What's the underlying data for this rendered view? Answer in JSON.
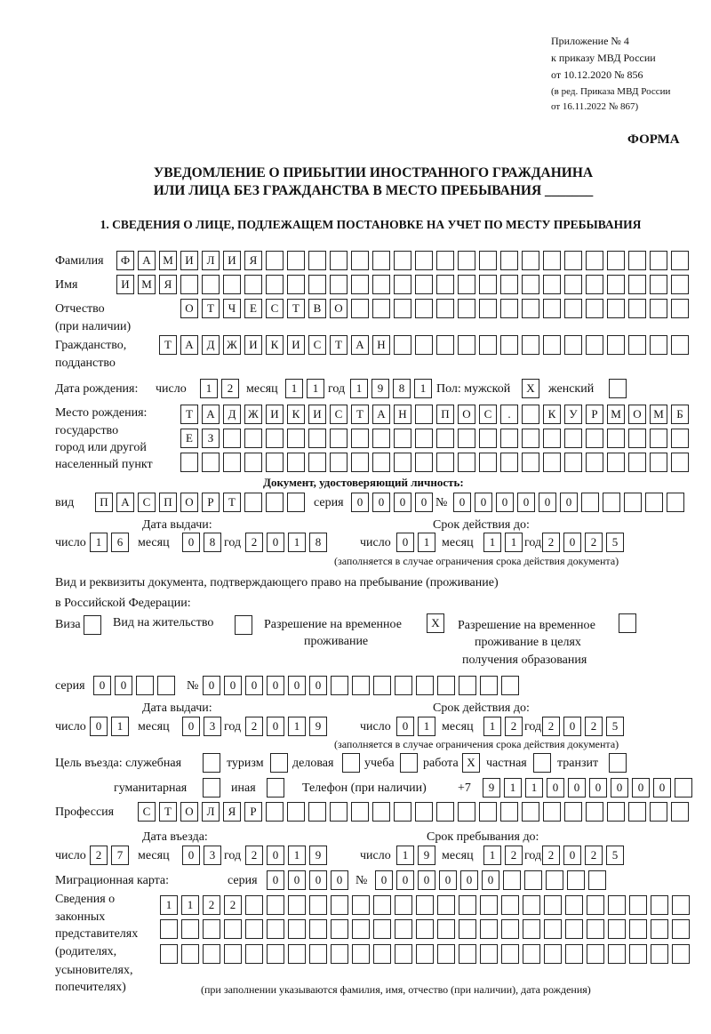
{
  "header": {
    "line1": "Приложение № 4",
    "line2": "к приказу МВД России",
    "line3": "от 10.12.2020 № 856",
    "line4": "(в ред. Приказа МВД России",
    "line5": "от 16.11.2022 № 867)",
    "form_label": "ФОРМА"
  },
  "title": {
    "line1": "УВЕДОМЛЕНИЕ О ПРИБЫТИИ ИНОСТРАННОГО ГРАЖДАНИНА",
    "line2": "ИЛИ ЛИЦА БЕЗ ГРАЖДАНСТВА В МЕСТО ПРЕБЫВАНИЯ _______"
  },
  "section1": {
    "heading": "1. СВЕДЕНИЯ О ЛИЦЕ, ПОДЛЕЖАЩЕМ ПОСТАНОВКЕ НА УЧЕТ ПО МЕСТУ ПРЕБЫВАНИЯ",
    "surname": {
      "label": "Фамилия",
      "value": "ФАМИЛИЯ"
    },
    "name": {
      "label": "Имя",
      "value": "ИМЯ"
    },
    "patronymic": {
      "label": "Отчество",
      "label2": "(при наличии)",
      "value": "ОТЧЕСТВО"
    },
    "citizenship": {
      "label": "Гражданство,",
      "label2": "подданство",
      "value": "ТАДЖИКИСТАН"
    },
    "birth": {
      "label": "Дата рождения:",
      "day_label": "число",
      "day": "12",
      "month_label": "месяц",
      "month": "11",
      "year_label": "год",
      "year": "1981",
      "sex_label": "Пол: мужской",
      "male": "X",
      "female_label": "женский",
      "female": ""
    },
    "birthplace": {
      "label1": "Место рождения:",
      "label2": "государство",
      "label3": "город или другой",
      "label4": "населенный пункт",
      "line1": "ТАДЖИКИСТАН ПОС. КУРМОМБ",
      "line2": "ЕЗ",
      "line3": ""
    },
    "id_doc": {
      "heading": "Документ, удостоверяющий личность:",
      "type_label": "вид",
      "type": "ПАСПОРТ",
      "series_label": "серия",
      "series": "0000",
      "number_label": "№",
      "number": "000000",
      "issue_label": "Дата выдачи:",
      "valid_label": "Срок действия до:",
      "day_label": "число",
      "month_label": "месяц",
      "year_label": "год",
      "issue_day": "16",
      "issue_month": "08",
      "issue_year": "2018",
      "valid_day": "01",
      "valid_month": "11",
      "valid_year": "2025",
      "note": "(заполняется в случае ограничения срока действия документа)"
    },
    "stay_doc": {
      "heading1": "Вид и реквизиты документа, подтверждающего право на пребывание (проживание)",
      "heading2": "в Российской Федерации:",
      "visa_label": "Виза",
      "visa": "",
      "residence_label": "Вид на жительство",
      "residence": "",
      "trp_label1": "Разрешение на временное",
      "trp_label2": "проживание",
      "trp": "X",
      "trp_edu_label1": "Разрешение на временное",
      "trp_edu_label2": "проживание в целях",
      "trp_edu_label3": "получения образования",
      "trp_edu": "",
      "series_label": "серия",
      "series": "00",
      "number_label": "№",
      "number": "000000",
      "issue_label": "Дата выдачи:",
      "valid_label": "Срок действия до:",
      "day_label": "число",
      "month_label": "месяц",
      "year_label": "год",
      "issue_day": "01",
      "issue_month": "03",
      "issue_year": "2019",
      "valid_day": "01",
      "valid_month": "12",
      "valid_year": "2025",
      "note": "(заполняется в случае ограничения срока действия документа)"
    },
    "purpose": {
      "label": "Цель въезда: служебная",
      "service": "",
      "tourism_label": "туризм",
      "tourism": "",
      "business_label": "деловая",
      "business": "",
      "study_label": "учеба",
      "study": "",
      "work_label": "работа",
      "work": "X",
      "private_label": "частная",
      "private": "",
      "transit_label": "транзит",
      "transit": "",
      "humanitarian_label": "гуманитарная",
      "humanitarian": "",
      "other_label": "иная",
      "other": ""
    },
    "phone": {
      "label": "Телефон (при наличии)",
      "prefix": "+7",
      "value": "911000000"
    },
    "profession": {
      "label": "Профессия",
      "value": "СТОЛЯР"
    },
    "entry": {
      "entry_label": "Дата въезда:",
      "stay_label": "Срок пребывания до:",
      "day_label": "число",
      "month_label": "месяц",
      "year_label": "год",
      "entry_day": "27",
      "entry_month": "03",
      "entry_year": "2019",
      "stay_day": "19",
      "stay_month": "12",
      "stay_year": "2025"
    },
    "migration_card": {
      "label": "Миграционная карта:",
      "series_label": "серия",
      "series": "0000",
      "number_label": "№",
      "number": "000000"
    },
    "representatives": {
      "label1": "Сведения о",
      "label2": "законных",
      "label3": "представителях",
      "label4": "(родителях,",
      "label5": "усыновителях,",
      "label6": "попечителях)",
      "line1": "1122",
      "line2": "",
      "line3": "",
      "note": "(при заполнении указываются фамилия, имя, отчество (при наличии), дата рождения)"
    }
  }
}
